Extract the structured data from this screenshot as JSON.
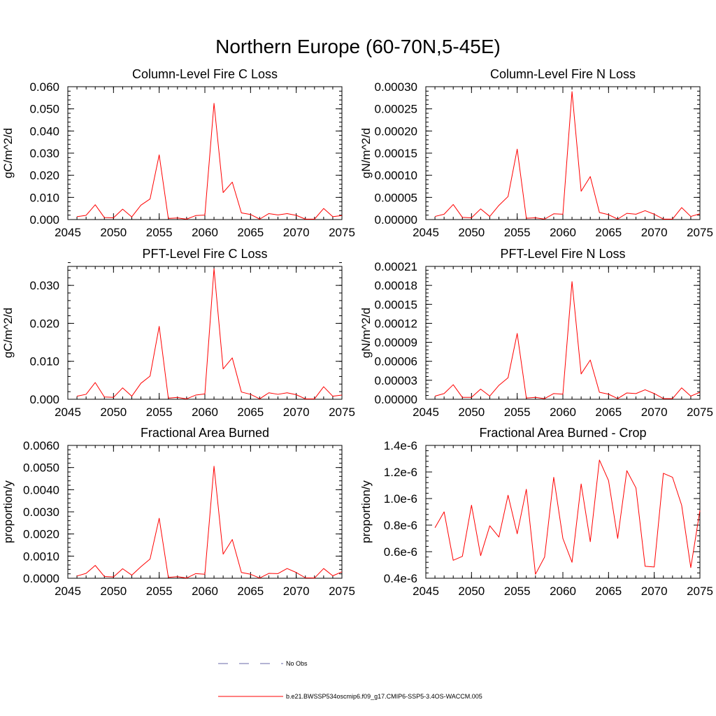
{
  "title": "Northern Europe (60-70N,5-45E)",
  "colors": {
    "model": "#ff0000",
    "obs": "#6a6aa8",
    "axis": "#000000"
  },
  "legend": [
    {
      "label": "No Obs",
      "style": "dashed",
      "color": "#6a6aa8"
    },
    {
      "label": "b.e21.BWSSP534oscmip6.f09_g17.CMIP6-SSP5-3.4OS-WACCM.005",
      "style": "solid",
      "color": "#ff0000"
    }
  ],
  "chart_data": [
    {
      "type": "line",
      "title": "Column-Level Fire C Loss",
      "ylabel": "gC/m^2/d",
      "xlim": [
        2045,
        2075
      ],
      "ylim": [
        0,
        0.06
      ],
      "xticks": [
        2045,
        2050,
        2055,
        2060,
        2065,
        2070,
        2075
      ],
      "yticks": [
        0,
        0.01,
        0.02,
        0.03,
        0.04,
        0.05,
        0.06
      ],
      "ytick_labels": [
        "0.000",
        "0.010",
        "0.020",
        "0.030",
        "0.040",
        "0.050",
        "0.060"
      ],
      "x": [
        2046,
        2047,
        2048,
        2049,
        2050,
        2051,
        2052,
        2053,
        2054,
        2055,
        2056,
        2057,
        2058,
        2059,
        2060,
        2061,
        2062,
        2063,
        2064,
        2065,
        2066,
        2067,
        2068,
        2069,
        2070,
        2071,
        2072,
        2073,
        2074,
        2075
      ],
      "series": [
        {
          "values": [
            0.0013,
            0.0019,
            0.0067,
            0.0009,
            0.0008,
            0.0047,
            0.0012,
            0.0065,
            0.0093,
            0.0292,
            0.0005,
            0.0007,
            0.0002,
            0.0018,
            0.002,
            0.0525,
            0.0122,
            0.0169,
            0.003,
            0.0023,
            0.0002,
            0.0027,
            0.0021,
            0.0027,
            0.0019,
            0.0002,
            0.0002,
            0.005,
            0.0013,
            0.0018
          ]
        }
      ]
    },
    {
      "type": "line",
      "title": "Column-Level Fire N Loss",
      "ylabel": "gN/m^2/d",
      "xlim": [
        2045,
        2075
      ],
      "ylim": [
        0,
        0.0003
      ],
      "xticks": [
        2045,
        2050,
        2055,
        2060,
        2065,
        2070,
        2075
      ],
      "yticks": [
        0,
        5e-05,
        0.0001,
        0.00015,
        0.0002,
        0.00025,
        0.0003
      ],
      "ytick_labels": [
        "0.00000",
        "0.00005",
        "0.00010",
        "0.00015",
        "0.00020",
        "0.00025",
        "0.00030"
      ],
      "x": [
        2046,
        2047,
        2048,
        2049,
        2050,
        2051,
        2052,
        2053,
        2054,
        2055,
        2056,
        2057,
        2058,
        2059,
        2060,
        2061,
        2062,
        2063,
        2064,
        2065,
        2066,
        2067,
        2068,
        2069,
        2070,
        2071,
        2072,
        2073,
        2074,
        2075
      ],
      "series": [
        {
          "values": [
            7e-06,
            1.2e-05,
            3.4e-05,
            5e-06,
            4e-06,
            2.4e-05,
            7e-06,
            3.2e-05,
            5.2e-05,
            0.000159,
            3e-06,
            4e-06,
            1e-06,
            1.3e-05,
            1.2e-05,
            0.000289,
            6.4e-05,
            9.7e-05,
            1.6e-05,
            1.1e-05,
            1e-06,
            1.4e-05,
            1.2e-05,
            2e-05,
            1.2e-05,
            1e-06,
            1e-06,
            2.7e-05,
            7e-06,
            1.3e-05
          ]
        }
      ]
    },
    {
      "type": "line",
      "title": "PFT-Level Fire C Loss",
      "ylabel": "gC/m^2/d",
      "xlim": [
        2045,
        2075
      ],
      "ylim": [
        0,
        0.035
      ],
      "xticks": [
        2045,
        2050,
        2055,
        2060,
        2065,
        2070,
        2075
      ],
      "yticks": [
        0,
        0.01,
        0.02,
        0.03
      ],
      "ytick_labels": [
        "0.000",
        "0.010",
        "0.020",
        "0.030"
      ],
      "x": [
        2046,
        2047,
        2048,
        2049,
        2050,
        2051,
        2052,
        2053,
        2054,
        2055,
        2056,
        2057,
        2058,
        2059,
        2060,
        2061,
        2062,
        2063,
        2064,
        2065,
        2066,
        2067,
        2068,
        2069,
        2070,
        2071,
        2072,
        2073,
        2074,
        2075
      ],
      "series": [
        {
          "values": [
            0.0008,
            0.0013,
            0.0044,
            0.0006,
            0.0005,
            0.003,
            0.0008,
            0.0042,
            0.0061,
            0.0192,
            0.0003,
            0.0005,
            0.0001,
            0.0011,
            0.0014,
            0.0344,
            0.008,
            0.0109,
            0.0019,
            0.0013,
            0.0001,
            0.0017,
            0.0013,
            0.0017,
            0.0012,
            0.0001,
            0.0001,
            0.0033,
            0.0008,
            0.0011
          ]
        }
      ]
    },
    {
      "type": "line",
      "title": "PFT-Level Fire N Loss",
      "ylabel": "gN/m^2/d",
      "xlim": [
        2045,
        2075
      ],
      "ylim": [
        0,
        0.00021
      ],
      "xticks": [
        2045,
        2050,
        2055,
        2060,
        2065,
        2070,
        2075
      ],
      "yticks": [
        0,
        3e-05,
        6e-05,
        9e-05,
        0.00012,
        0.00015,
        0.00018,
        0.00021
      ],
      "ytick_labels": [
        "0.00000",
        "0.00003",
        "0.00006",
        "0.00009",
        "0.00012",
        "0.00015",
        "0.00018",
        "0.00021"
      ],
      "x": [
        2046,
        2047,
        2048,
        2049,
        2050,
        2051,
        2052,
        2053,
        2054,
        2055,
        2056,
        2057,
        2058,
        2059,
        2060,
        2061,
        2062,
        2063,
        2064,
        2065,
        2066,
        2067,
        2068,
        2069,
        2070,
        2071,
        2072,
        2073,
        2074,
        2075
      ],
      "series": [
        {
          "values": [
            5e-06,
            9e-06,
            2.3e-05,
            3e-06,
            3e-06,
            1.6e-05,
            5e-06,
            2.2e-05,
            3.4e-05,
            0.000104,
            2e-06,
            3e-06,
            1e-06,
            9e-06,
            8e-06,
            0.000186,
            4e-05,
            6.2e-05,
            1.1e-05,
            8e-06,
            1e-06,
            1e-05,
            9e-06,
            1.5e-05,
            9e-06,
            1e-06,
            1e-06,
            1.8e-05,
            5e-06,
            1.1e-05
          ]
        }
      ]
    },
    {
      "type": "line",
      "title": "Fractional Area Burned",
      "ylabel": "proportion/y",
      "xlim": [
        2045,
        2075
      ],
      "ylim": [
        0,
        0.006
      ],
      "xticks": [
        2045,
        2050,
        2055,
        2060,
        2065,
        2070,
        2075
      ],
      "yticks": [
        0,
        0.001,
        0.002,
        0.003,
        0.004,
        0.005,
        0.006
      ],
      "ytick_labels": [
        "0.0000",
        "0.0010",
        "0.0020",
        "0.0030",
        "0.0040",
        "0.0050",
        "0.0060"
      ],
      "x": [
        2046,
        2047,
        2048,
        2049,
        2050,
        2051,
        2052,
        2053,
        2054,
        2055,
        2056,
        2057,
        2058,
        2059,
        2060,
        2061,
        2062,
        2063,
        2064,
        2065,
        2066,
        2067,
        2068,
        2069,
        2070,
        2071,
        2072,
        2073,
        2074,
        2075
      ],
      "series": [
        {
          "values": [
            0.0001,
            0.00022,
            0.00058,
            8e-05,
            6e-05,
            0.00043,
            0.00014,
            0.00052,
            0.00087,
            0.00271,
            4e-05,
            7e-05,
            1e-05,
            0.00021,
            0.00018,
            0.00506,
            0.00109,
            0.00175,
            0.00026,
            0.00018,
            1e-05,
            0.00022,
            0.00021,
            0.00044,
            0.00026,
            2e-05,
            1e-05,
            0.00044,
            0.00011,
            0.00029
          ]
        }
      ]
    },
    {
      "type": "line",
      "title": "Fractional Area Burned - Crop",
      "ylabel": "proportion/y",
      "xlim": [
        2045,
        2075
      ],
      "ylim": [
        4e-07,
        1.4e-06
      ],
      "xticks": [
        2045,
        2050,
        2055,
        2060,
        2065,
        2070,
        2075
      ],
      "yticks": [
        4e-07,
        6e-07,
        8e-07,
        1e-06,
        1.2e-06,
        1.4e-06
      ],
      "ytick_labels": [
        "0.4e-6",
        "0.6e-6",
        "0.8e-6",
        "1.0e-6",
        "1.2e-6",
        "1.4e-6"
      ],
      "x": [
        2046,
        2047,
        2048,
        2049,
        2050,
        2051,
        2052,
        2053,
        2054,
        2055,
        2056,
        2057,
        2058,
        2059,
        2060,
        2061,
        2062,
        2063,
        2064,
        2065,
        2066,
        2067,
        2068,
        2069,
        2070,
        2071,
        2072,
        2073,
        2074,
        2075
      ],
      "series": [
        {
          "values": [
            7.8e-07,
            9e-07,
            5.35e-07,
            5.65e-07,
            9.5e-07,
            5.7e-07,
            7.95e-07,
            7.1e-07,
            1.025e-06,
            7.35e-07,
            1.07e-06,
            4.3e-07,
            5.6e-07,
            1.16e-06,
            7e-07,
            5.2e-07,
            1.11e-06,
            6.75e-07,
            1.29e-06,
            1.135e-06,
            7e-07,
            1.21e-06,
            1.08e-06,
            4.9e-07,
            4.85e-07,
            1.19e-06,
            1.16e-06,
            9.5e-07,
            4.8e-07,
            9.1e-07
          ]
        }
      ]
    }
  ]
}
